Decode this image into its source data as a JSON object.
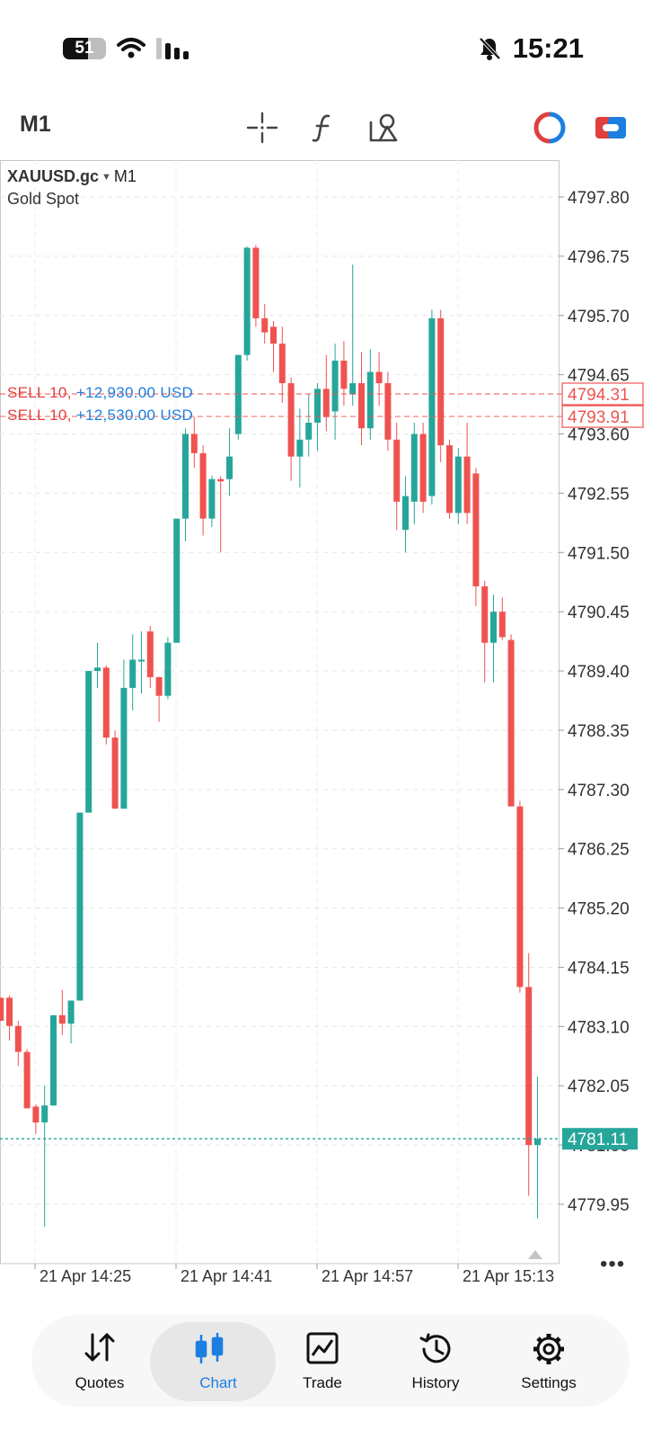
{
  "status_bar": {
    "battery": "51",
    "time": "15:21"
  },
  "toolbar": {
    "timeframe": "M1",
    "icons": [
      "crosshair-icon",
      "indicators-icon",
      "objects-icon",
      "one-click-trading-icon",
      "account-switch-icon"
    ]
  },
  "chart": {
    "symbol": "XAUUSD.gc",
    "timeframe": "M1",
    "description": "Gold Spot",
    "colors": {
      "up": "#26a69a",
      "down": "#ef5350",
      "price_line": "#26a69a",
      "order_line": "#ef5350",
      "pl": "#1c7fe0"
    },
    "orders": [
      {
        "side": "SELL 10,",
        "pl": "+12,930.00 USD",
        "price": 4794.31,
        "price_label": "4794.31"
      },
      {
        "side": "SELL 10,",
        "pl": "+12,530.00 USD",
        "price": 4793.91,
        "price_label": "4793.91"
      }
    ],
    "current_price": 4781.11,
    "current_price_label": "4781.11",
    "more_label": "•••"
  },
  "chart_data": {
    "type": "candlestick",
    "y_ticks": [
      "4797.80",
      "4796.75",
      "4795.70",
      "4794.65",
      "4793.60",
      "4792.55",
      "4791.50",
      "4790.45",
      "4789.40",
      "4788.35",
      "4787.30",
      "4786.25",
      "4785.20",
      "4784.15",
      "4783.10",
      "4782.05",
      "4781.00",
      "4779.95"
    ],
    "x_ticks": [
      "21 Apr 14:25",
      "21 Apr 14:41",
      "21 Apr 14:57",
      "21 Apr 15:13"
    ],
    "ylim": [
      4779.2,
      4798.5
    ],
    "candles": [
      [
        4783.61,
        4783.61,
        4783.2,
        4783.2
      ],
      [
        4783.61,
        4783.65,
        4782.85,
        4783.11
      ],
      [
        4783.11,
        4783.2,
        4782.4,
        4782.65
      ],
      [
        4782.65,
        4782.7,
        4781.65,
        4781.65
      ],
      [
        4781.68,
        4781.72,
        4781.2,
        4781.4
      ],
      [
        4781.4,
        4782.05,
        4779.55,
        4781.7
      ],
      [
        4781.7,
        4783.3,
        4781.7,
        4783.3
      ],
      [
        4783.3,
        4783.75,
        4782.95,
        4783.15
      ],
      [
        4783.15,
        4783.56,
        4782.8,
        4783.56
      ],
      [
        4783.56,
        4786.89,
        4783.56,
        4786.89
      ],
      [
        4786.89,
        4789.4,
        4786.89,
        4789.4
      ],
      [
        4789.4,
        4789.9,
        4789.1,
        4789.46
      ],
      [
        4789.46,
        4789.5,
        4788.1,
        4788.22
      ],
      [
        4788.22,
        4788.35,
        4786.96,
        4786.96
      ],
      [
        4786.96,
        4789.6,
        4786.96,
        4789.1
      ],
      [
        4789.1,
        4790.05,
        4788.7,
        4789.6
      ],
      [
        4789.6,
        4790.1,
        4789.0,
        4789.6
      ],
      [
        4790.1,
        4790.2,
        4789.1,
        4789.29
      ],
      [
        4789.29,
        4789.3,
        4788.5,
        4788.96
      ],
      [
        4788.96,
        4790.0,
        4788.9,
        4789.9
      ],
      [
        4789.9,
        4792.1,
        4789.9,
        4792.1
      ],
      [
        4792.1,
        4793.7,
        4791.7,
        4793.6
      ],
      [
        4793.6,
        4793.9,
        4793.0,
        4793.26
      ],
      [
        4793.26,
        4793.4,
        4791.8,
        4792.1
      ],
      [
        4792.1,
        4792.86,
        4791.95,
        4792.8
      ],
      [
        4792.8,
        4792.85,
        4791.5,
        4792.76
      ],
      [
        4792.8,
        4793.7,
        4792.5,
        4793.2
      ],
      [
        4793.6,
        4795.0,
        4793.5,
        4795.0
      ],
      [
        4795.0,
        4796.92,
        4794.9,
        4796.9
      ],
      [
        4796.9,
        4796.95,
        4795.5,
        4795.65
      ],
      [
        4795.65,
        4795.9,
        4795.2,
        4795.4
      ],
      [
        4795.5,
        4795.6,
        4794.7,
        4795.2
      ],
      [
        4795.2,
        4795.5,
        4794.15,
        4794.5
      ],
      [
        4794.5,
        4794.6,
        4792.77,
        4793.2
      ],
      [
        4793.2,
        4794.05,
        4792.65,
        4793.5
      ],
      [
        4793.5,
        4794.3,
        4793.2,
        4793.8
      ],
      [
        4793.8,
        4794.5,
        4793.3,
        4794.4
      ],
      [
        4794.4,
        4795.0,
        4793.65,
        4793.9
      ],
      [
        4794.0,
        4795.2,
        4793.5,
        4794.9
      ],
      [
        4794.9,
        4795.25,
        4794.1,
        4794.4
      ],
      [
        4794.3,
        4796.6,
        4794.1,
        4794.5
      ],
      [
        4794.5,
        4795.05,
        4793.4,
        4793.7
      ],
      [
        4793.7,
        4795.1,
        4793.5,
        4794.7
      ],
      [
        4794.7,
        4795.05,
        4794.1,
        4794.5
      ],
      [
        4794.5,
        4794.7,
        4793.3,
        4793.5
      ],
      [
        4793.5,
        4793.8,
        4791.9,
        4792.4
      ],
      [
        4791.9,
        4792.85,
        4791.5,
        4792.5
      ],
      [
        4792.4,
        4793.8,
        4792.0,
        4793.6
      ],
      [
        4793.6,
        4793.8,
        4792.2,
        4792.4
      ],
      [
        4792.5,
        4795.8,
        4792.35,
        4795.65
      ],
      [
        4795.65,
        4795.8,
        4793.1,
        4793.4
      ],
      [
        4793.4,
        4793.5,
        4792.1,
        4792.2
      ],
      [
        4792.2,
        4793.35,
        4792.0,
        4793.2
      ],
      [
        4793.2,
        4793.8,
        4792.0,
        4792.2
      ],
      [
        4792.9,
        4793.0,
        4790.55,
        4790.9
      ],
      [
        4790.9,
        4791.0,
        4789.2,
        4789.9
      ],
      [
        4789.9,
        4790.75,
        4789.2,
        4790.45
      ],
      [
        4790.45,
        4790.7,
        4789.95,
        4790.0
      ],
      [
        4789.95,
        4790.05,
        4787.0,
        4787.0
      ],
      [
        4787.0,
        4787.1,
        4783.7,
        4783.8
      ],
      [
        4783.8,
        4784.4,
        4780.1,
        4781.0
      ],
      [
        4781.0,
        4782.21,
        4779.7,
        4781.11
      ]
    ]
  },
  "nav": {
    "items": [
      {
        "label": "Quotes",
        "icon": "quotes-icon"
      },
      {
        "label": "Chart",
        "icon": "chart-icon",
        "active": true
      },
      {
        "label": "Trade",
        "icon": "trade-icon"
      },
      {
        "label": "History",
        "icon": "history-icon"
      },
      {
        "label": "Settings",
        "icon": "settings-icon"
      }
    ]
  }
}
